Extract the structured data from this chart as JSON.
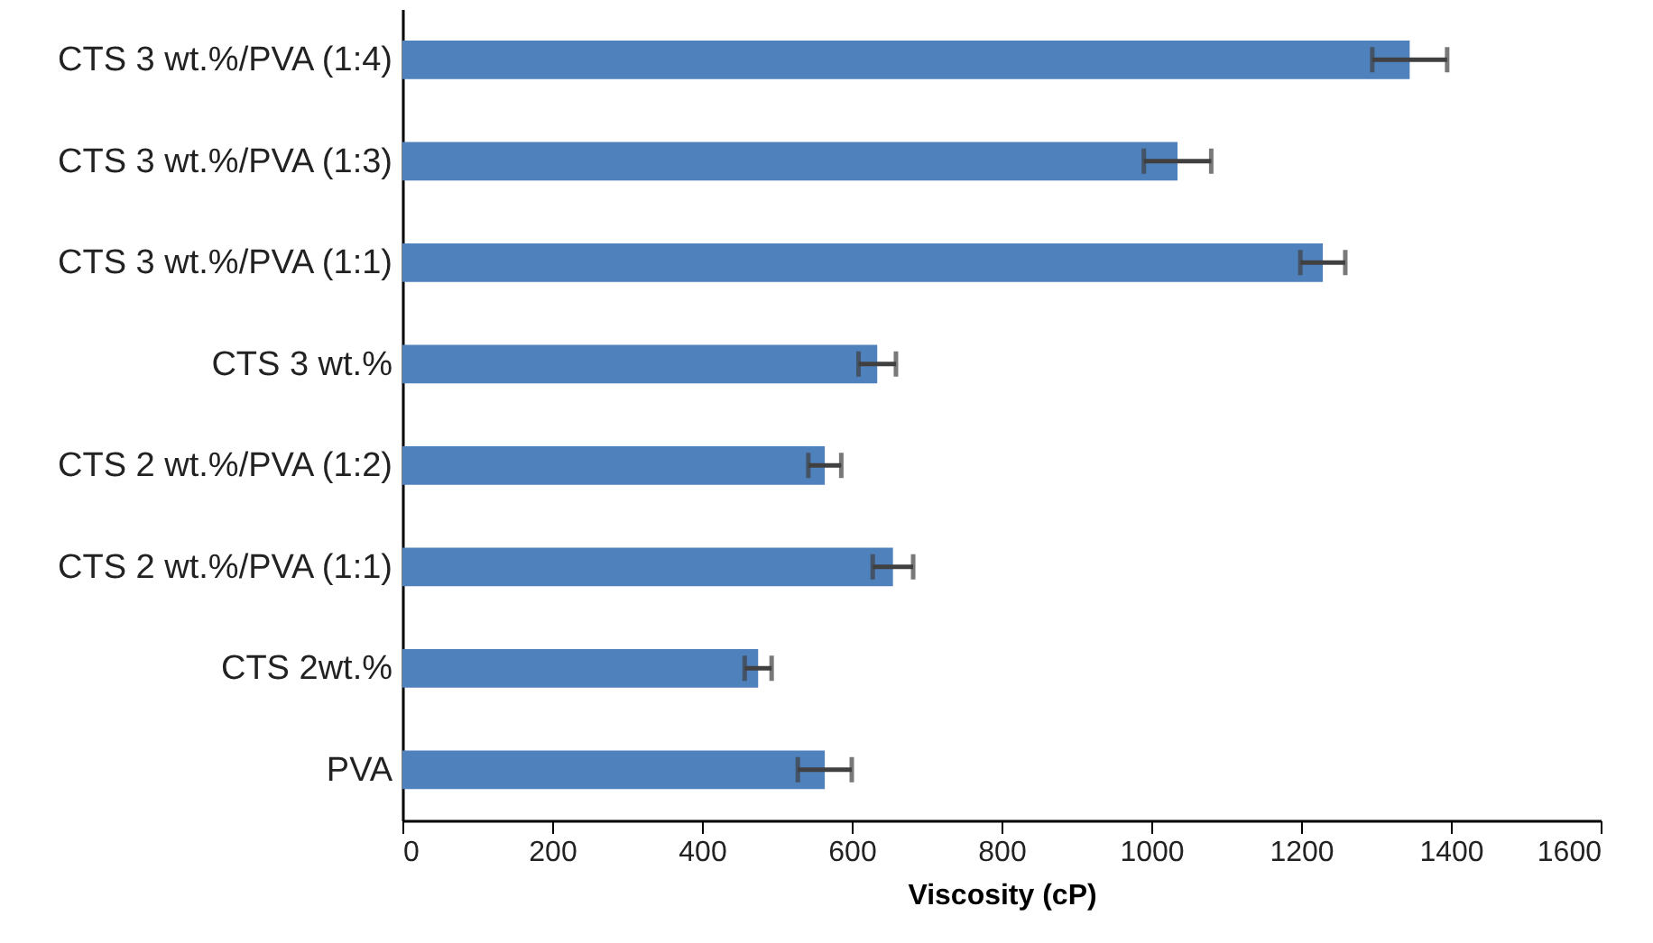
{
  "chart_data": {
    "type": "bar",
    "orientation": "horizontal",
    "xlabel": "Viscosity (cP)",
    "categories": [
      "CTS 3 wt.%/PVA (1:4)",
      "CTS 3 wt.%/PVA (1:3)",
      "CTS 3 wt.%/PVA (1:1)",
      "CTS 3 wt.%",
      "CTS 2 wt.%/PVA (1:2)",
      "CTS 2 wt.%/PVA (1:1)",
      "CTS 2wt.%",
      "PVA"
    ],
    "values": [
      1345,
      1035,
      1229,
      634,
      564,
      655,
      475,
      564
    ],
    "errors": [
      50,
      45,
      30,
      25,
      22,
      27,
      18,
      36
    ],
    "color": "#4f81bd",
    "xlim": [
      0,
      1600
    ],
    "xticks": [
      0,
      200,
      400,
      600,
      800,
      1000,
      1200,
      1400,
      1600
    ],
    "grid": false
  }
}
